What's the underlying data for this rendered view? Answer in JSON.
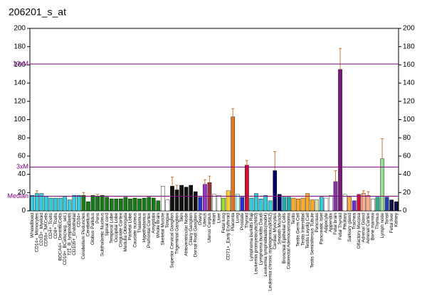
{
  "chart_data": {
    "type": "bar",
    "title": "206201_s_at",
    "categories": [
      "WholeBlood",
      "CD14+_Monocytes",
      "CD33+_Myeloid",
      "CD56+_NKCells",
      "CD4+_Tcells",
      "CD8+_Tcells",
      "BDCA4+_DentriticCells",
      "CD19+_BCells(neg._sel.)",
      "721_B_lymphoblasts",
      "CD105+_Endothelial",
      "CD34+",
      "Cerebellum Peduncles",
      "Cerebellum",
      "Globus Pallidus",
      "Pons",
      "Subthalamic Nucleus",
      "Spinal cord",
      "Temporal Lobe",
      "Occipital Lobe",
      "Cingulate Cortex",
      "Medulla Oblongata",
      "Parietal Lobe",
      "Caudate nucleus",
      "Thalamus",
      "Hypothalamus",
      "Prefrontal Cortex",
      "Amygdala",
      "Whole Brain",
      "Skeletal Muscle",
      "Tongue",
      "Superior Cervical Ganglion",
      "Trigeminal Ganglion",
      "Skin",
      "Atrioventricular Node",
      "Ciliary Ganglion",
      "Dorsal Root Ganglion",
      "Ovary",
      "Uterus",
      "Uterus Corpus",
      "Heart",
      "Liver",
      "Fetal lung",
      "CD71+_Early Erythroid",
      "Placenta",
      "Lung",
      "Prostate",
      "Thyroid",
      "Lymphoma burkitts Raji",
      "Leukemia promyelocytic(hl60)",
      "Lymphoma burkitts Daudi",
      "Leukemia lymphoblastic(molt4)",
      "Leukemia chronic myelogenous(k562)",
      "Cardiac Myocytes",
      "Smooth Muscle",
      "Bronchial Epithelial Cells",
      "Colorectal Adenocarcinoma",
      "Testis",
      "Testis Germ Cell",
      "Testis Interstitial",
      "Testis Leydig Cell",
      "Testis Seminiferous Tubule",
      "Pancreas",
      "Pancreatic Islet",
      "Adipocyte",
      "Appendix",
      "Fetal brain",
      "Fetal Thyroid",
      "Pituitary",
      "Salivary gland",
      "Trachea",
      "Olfactory Mucosa",
      "Adrenal Gland",
      "Adrenal Cortex",
      "Bone marrow",
      "Thymus",
      "Lymph node",
      "Tonsil",
      "Fetal liver",
      "Kidney"
    ],
    "values": [
      17,
      19,
      19,
      16,
      14,
      14,
      14,
      16,
      12,
      17,
      17,
      17,
      10,
      17,
      16,
      17,
      15,
      13,
      13,
      13,
      15,
      13,
      14,
      13,
      14,
      15,
      14,
      11,
      27,
      12,
      27,
      23,
      28,
      26,
      28,
      21,
      15,
      29,
      31,
      18,
      17,
      14,
      22,
      103,
      18,
      15,
      50,
      14,
      19,
      13,
      17,
      11,
      44,
      18,
      15,
      15,
      14,
      13,
      14,
      19,
      12,
      12,
      15,
      14,
      17,
      32,
      155,
      18,
      15,
      11,
      18,
      19,
      17,
      13,
      15,
      57,
      15,
      12,
      10
    ],
    "errors": [
      null,
      3,
      null,
      null,
      null,
      null,
      null,
      null,
      null,
      null,
      null,
      3,
      null,
      null,
      2,
      null,
      null,
      null,
      null,
      null,
      null,
      null,
      null,
      null,
      null,
      null,
      null,
      null,
      null,
      null,
      10,
      5,
      null,
      null,
      null,
      null,
      null,
      5,
      7,
      null,
      null,
      null,
      null,
      9,
      null,
      null,
      5,
      null,
      null,
      null,
      null,
      null,
      21,
      null,
      null,
      null,
      null,
      null,
      null,
      null,
      null,
      null,
      null,
      null,
      null,
      12,
      23,
      null,
      null,
      null,
      null,
      3,
      4,
      null,
      null,
      22,
      null,
      null,
      null
    ],
    "colors": [
      "#33ccdd",
      "#33ccdd",
      "#33ccdd",
      "#33ccdd",
      "#33ccdd",
      "#33ccdd",
      "#33ccdd",
      "#33ccdd",
      "#33ccdd",
      "#33ccdd",
      "#33ccdd",
      "#1a7a1a",
      "#1a7a1a",
      "#1a7a1a",
      "#1a7a1a",
      "#1a7a1a",
      "#1a7a1a",
      "#1a7a1a",
      "#1a7a1a",
      "#1a7a1a",
      "#1a7a1a",
      "#1a7a1a",
      "#1a7a1a",
      "#1a7a1a",
      "#1a7a1a",
      "#1a7a1a",
      "#1a7a1a",
      "#1a7a1a",
      "#ffffff",
      "#ffffff",
      "#111111",
      "#111111",
      "#111111",
      "#111111",
      "#111111",
      "#111111",
      "#2233cc",
      "#9933cc",
      "#993344",
      "#ffffff",
      "#ffffff",
      "#99dd33",
      "#ffcc33",
      "#dd7722",
      "#ccffff",
      "#2233cc",
      "#cc1133",
      "#33ccdd",
      "#33ccdd",
      "#33ccdd",
      "#33ccdd",
      "#33ccdd",
      "#000066",
      "#000066",
      "#22aaaa",
      "#22aaaa",
      "#ffaa22",
      "#ffaa22",
      "#ffaa22",
      "#ffaa22",
      "#ffaa22",
      "#ddddaa",
      "#33ccdd",
      "#ffffff",
      "#ffffff",
      "#8833aa",
      "#7a1a7a",
      "#ffffff",
      "#ffaa44",
      "#6633cc",
      "#cc1133",
      "#ffaa88",
      "#ffaa88",
      "#ffffff",
      "#33aa88",
      "#99dd99",
      "#2244aa",
      "#111144",
      "#111144"
    ],
    "error_color": "#cc7733",
    "ylim": [
      0,
      200
    ],
    "yticks": [
      0,
      20,
      40,
      60,
      80,
      100,
      120,
      140,
      160,
      180,
      200
    ],
    "y2lim": [
      0,
      200
    ],
    "y2ticks": [
      0,
      20,
      40,
      60,
      80,
      100,
      120,
      140,
      160,
      180,
      200
    ],
    "reference_lines": [
      {
        "label": "10xM",
        "value": 161
      },
      {
        "label": "3xM",
        "value": 48
      },
      {
        "label": "Median",
        "value": 16
      }
    ],
    "reference_color": "#800080"
  }
}
